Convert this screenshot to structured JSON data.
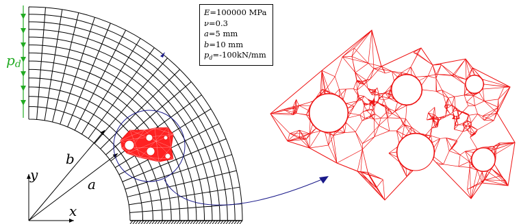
{
  "material_box": {
    "lines": [
      {
        "sym": "E",
        "text": "=100000 MPa"
      },
      {
        "sym": "ν",
        "text": "=0.3"
      },
      {
        "sym": "a",
        "text": "=5 mm"
      },
      {
        "sym": "b",
        "text": "=10 mm"
      },
      {
        "sym": "p",
        "sub": "d",
        "text": "=-100kN/mm"
      }
    ]
  },
  "labels": {
    "pressure": {
      "sym": "p",
      "sub": "d"
    },
    "radius_outer": "b",
    "radius_inner": "a",
    "axis_x": "x",
    "axis_y": "y"
  },
  "colors": {
    "coarse_mesh": "#000000",
    "fine_mesh": "#ee1111",
    "pressure_arrows": "#22aa22",
    "zoom_circle": "#1a1a8a",
    "zoom_arrow": "#1a1a8a"
  }
}
